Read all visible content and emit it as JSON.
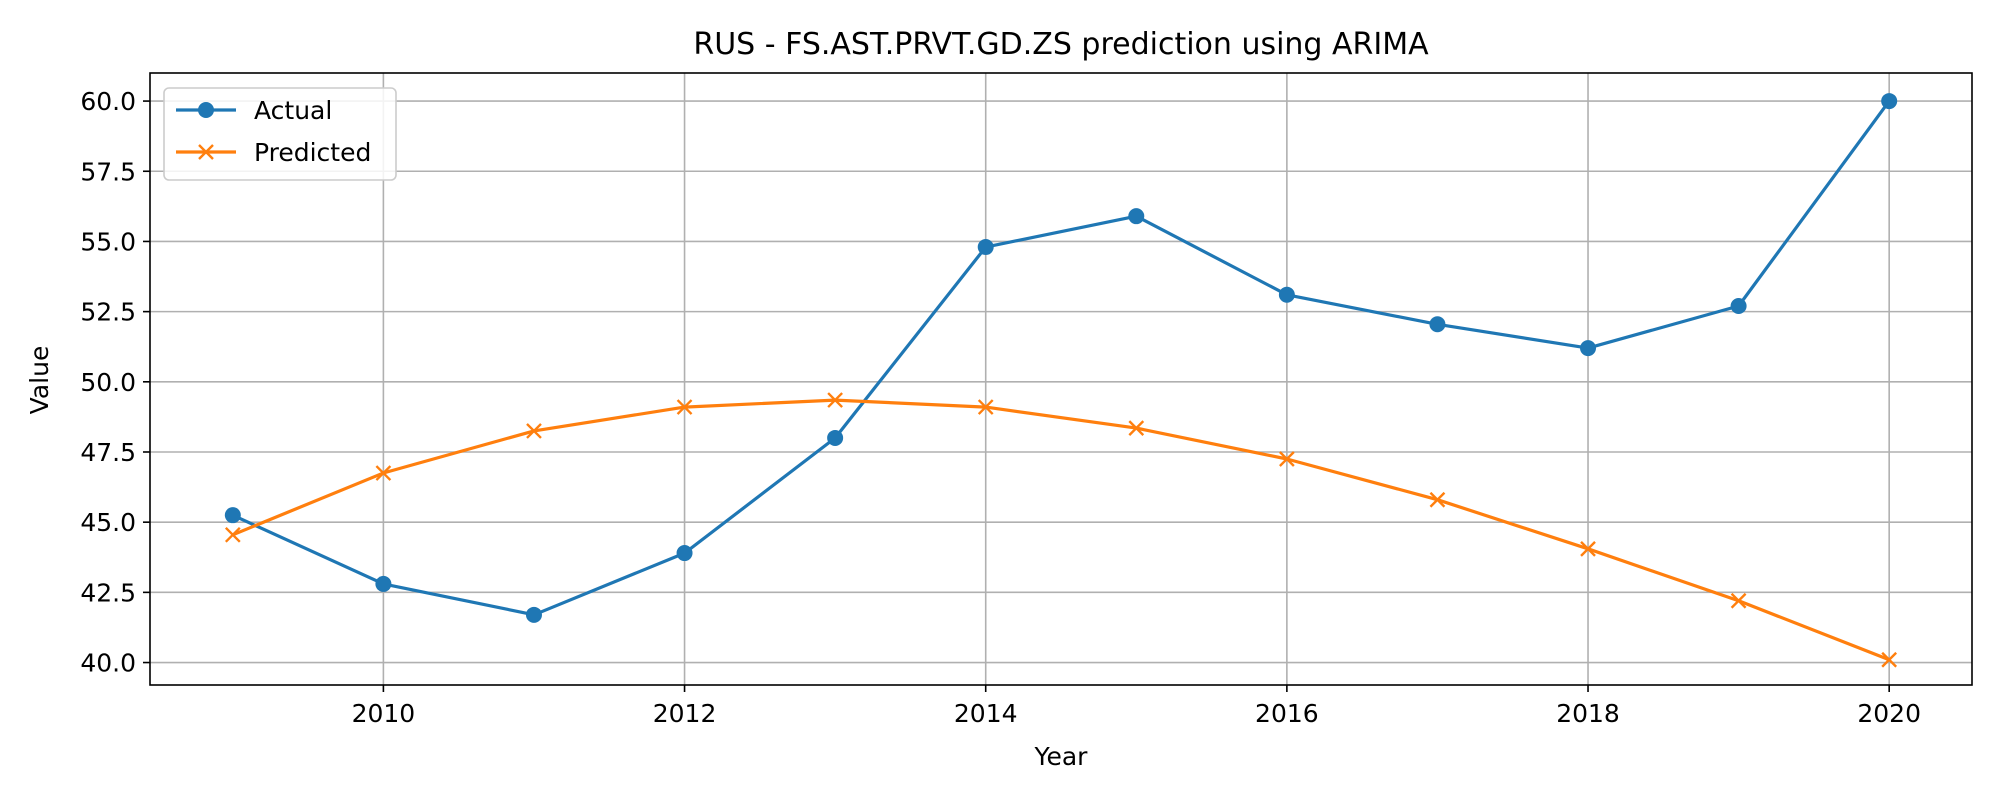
{
  "chart_data": {
    "type": "line",
    "title": "RUS - FS.AST.PRVT.GD.ZS prediction using ARIMA",
    "xlabel": "Year",
    "ylabel": "Value",
    "x": [
      2009,
      2010,
      2011,
      2012,
      2013,
      2014,
      2015,
      2016,
      2017,
      2018,
      2019,
      2020
    ],
    "xlim": [
      2008.45,
      2020.55
    ],
    "ylim": [
      39.2,
      61.0
    ],
    "xticks": [
      2010,
      2012,
      2014,
      2016,
      2018,
      2020
    ],
    "yticks": [
      40.0,
      42.5,
      45.0,
      47.5,
      50.0,
      52.5,
      55.0,
      57.5,
      60.0
    ],
    "xtick_labels": [
      "2010",
      "2012",
      "2014",
      "2016",
      "2018",
      "2020"
    ],
    "ytick_labels": [
      "40.0",
      "42.5",
      "45.0",
      "47.5",
      "50.0",
      "52.5",
      "55.0",
      "57.5",
      "60.0"
    ],
    "grid": true,
    "legend_position": "top-left",
    "series": [
      {
        "name": "Actual",
        "color": "#1f77b4",
        "marker": "circle",
        "values": [
          45.25,
          42.8,
          41.7,
          43.9,
          48.0,
          54.8,
          55.9,
          53.1,
          52.05,
          51.2,
          52.7,
          60.0
        ]
      },
      {
        "name": "Predicted",
        "color": "#ff7f0e",
        "marker": "x",
        "values": [
          44.55,
          46.75,
          48.25,
          49.1,
          49.35,
          49.1,
          48.35,
          47.25,
          45.8,
          44.05,
          42.2,
          40.1
        ]
      }
    ]
  }
}
